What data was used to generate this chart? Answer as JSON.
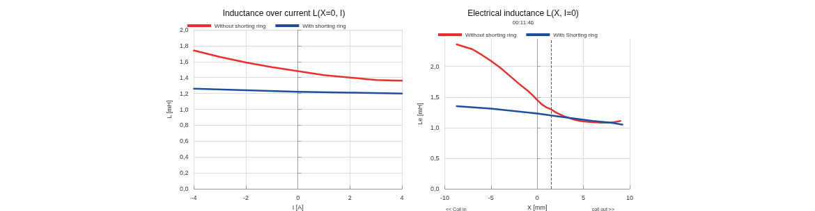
{
  "chart_data": [
    {
      "type": "line",
      "title": "Inductance over current L(X=0, I)",
      "xlabel": "I [A]",
      "ylabel": "L [mH]",
      "xlim": [
        -4,
        4
      ],
      "xticks": [
        -4,
        -2,
        0,
        2,
        4
      ],
      "ylim": [
        0,
        2
      ],
      "yticks": [
        {
          "value": 0,
          "label": "0,0"
        },
        {
          "value": 0.2,
          "label": "0,2"
        },
        {
          "value": 0.4,
          "label": "0,4"
        },
        {
          "value": 0.6,
          "label": "0,6"
        },
        {
          "value": 0.8,
          "label": "0,8"
        },
        {
          "value": 1,
          "label": "1,0"
        },
        {
          "value": 1.2,
          "label": "1,2"
        },
        {
          "value": 1.4,
          "label": "1,4"
        },
        {
          "value": 1.6,
          "label": "1,6"
        },
        {
          "value": 1.8,
          "label": "1,8"
        },
        {
          "value": 2,
          "label": "2,0"
        }
      ],
      "grid": true,
      "legend": "top",
      "marker": "none",
      "line_style": "solid",
      "series": [
        {
          "name": "Without shorting ring",
          "color": "#e8302e",
          "x": [
            -4,
            -3,
            -2,
            -1,
            0,
            1,
            2,
            3,
            4
          ],
          "values": [
            1.74,
            1.66,
            1.59,
            1.53,
            1.48,
            1.43,
            1.4,
            1.37,
            1.36
          ]
        },
        {
          "name": "With shorting ring",
          "color": "#1f4e9c",
          "x": [
            -4,
            -2,
            0,
            2,
            4
          ],
          "values": [
            1.26,
            1.24,
            1.22,
            1.21,
            1.2
          ]
        }
      ]
    },
    {
      "type": "line",
      "title": "Electrical inductance L(X, I=0)",
      "subtitle": "00:11:46",
      "xlabel": "X [mm]",
      "ylabel": "Le [mH]",
      "annotations": [
        "<< Coil in",
        "coil out >>"
      ],
      "xlim": [
        -10,
        10
      ],
      "xticks": [
        -10,
        -5,
        0,
        5,
        10
      ],
      "ylim": [
        0,
        2.45
      ],
      "yticks": [
        {
          "value": 0,
          "label": "0,0"
        },
        {
          "value": 0.5,
          "label": "0,5"
        },
        {
          "value": 1,
          "label": "1,0"
        },
        {
          "value": 1.5,
          "label": "1,5"
        },
        {
          "value": 2,
          "label": "2,0"
        }
      ],
      "grid": true,
      "legend": "top",
      "marker": "none",
      "line_style": "solid",
      "ref_lines": [
        {
          "axis": "x",
          "value": 1.5,
          "color": "#555555",
          "line_style": "dashed"
        }
      ],
      "series": [
        {
          "name": "Without shorting ring",
          "color": "#e8302e",
          "x": [
            -8.7,
            -7,
            -6,
            -5,
            -4,
            -3,
            -2,
            -1,
            -0.5,
            0,
            0.5,
            1,
            1.5,
            2,
            3,
            4,
            5,
            6,
            7,
            8,
            9
          ],
          "values": [
            2.36,
            2.28,
            2.19,
            2.09,
            1.98,
            1.85,
            1.72,
            1.6,
            1.53,
            1.45,
            1.38,
            1.33,
            1.3,
            1.25,
            1.18,
            1.13,
            1.1,
            1.09,
            1.08,
            1.08,
            1.11
          ]
        },
        {
          "name": "With Shorting ring",
          "color": "#1f4e9c",
          "x": [
            -8.7,
            -5,
            0,
            2,
            4,
            6,
            8,
            9.2
          ],
          "values": [
            1.35,
            1.31,
            1.23,
            1.19,
            1.15,
            1.11,
            1.08,
            1.05
          ]
        }
      ]
    }
  ]
}
